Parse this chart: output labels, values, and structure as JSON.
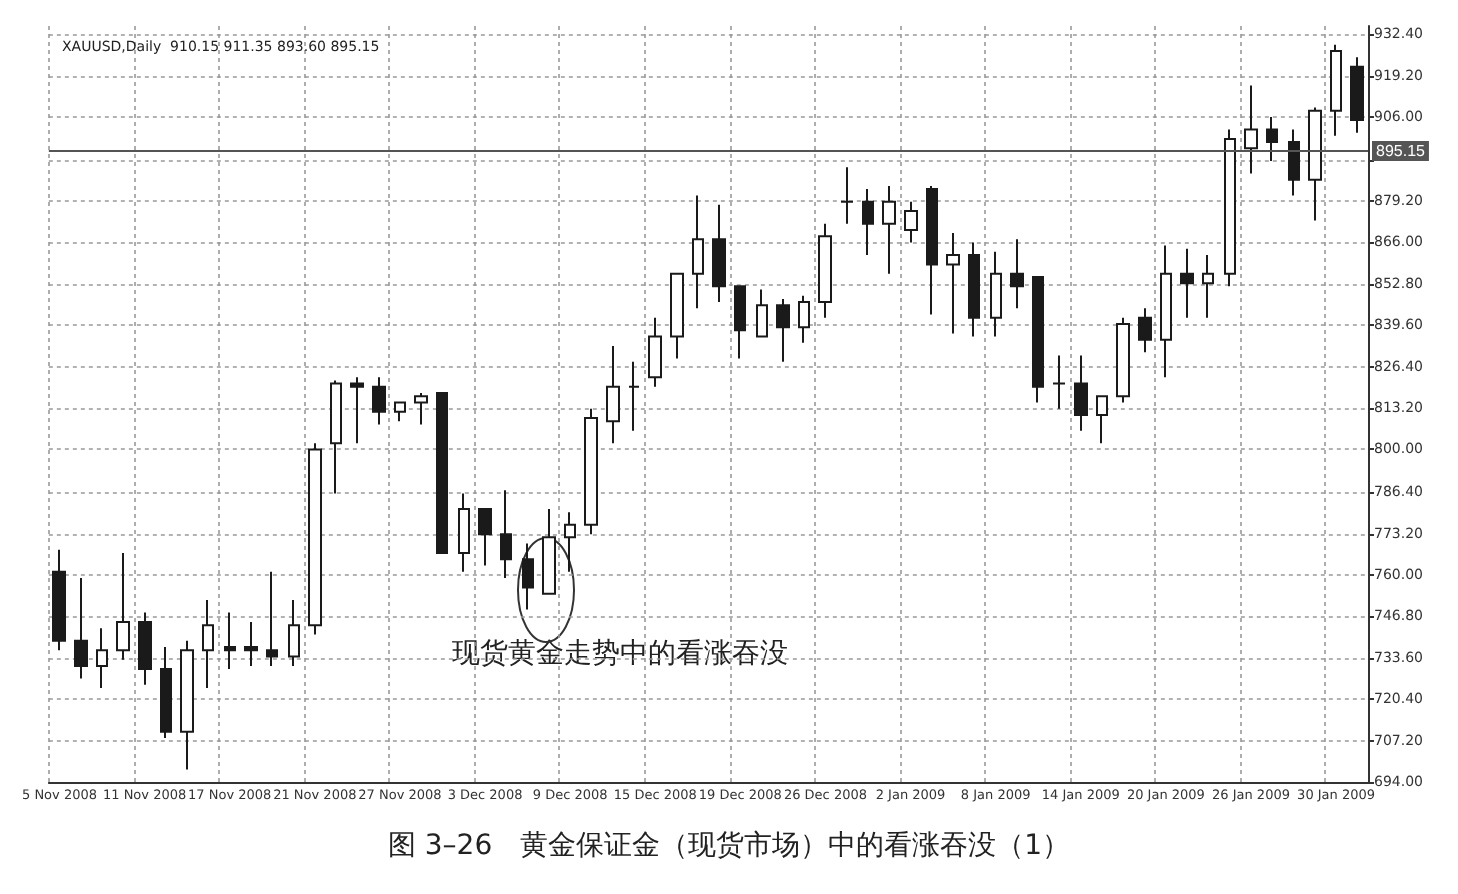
{
  "chart_data": {
    "type": "candlestick",
    "title": "图 3–26　黄金保证金（现货市场）中的看涨吞没（1）",
    "subtitle": "XAUUSD,Daily  910.15 911.35 893.60 895.15",
    "annotations": [
      "现货黄金走势中的看涨吞没"
    ],
    "categories": [
      "5 Nov 2008",
      null,
      null,
      null,
      "11 Nov 2008",
      null,
      null,
      null,
      "17 Nov 2008",
      null,
      null,
      null,
      "21 Nov 2008",
      null,
      null,
      null,
      "27 Nov 2008",
      null,
      null,
      null,
      "3 Dec 2008",
      null,
      null,
      null,
      "9 Dec 2008",
      null,
      null,
      null,
      "15 Dec 2008",
      null,
      null,
      null,
      "19 Dec 2008",
      null,
      null,
      null,
      "26 Dec 2008",
      null,
      null,
      null,
      "2 Jan 2009",
      null,
      null,
      null,
      "8 Jan 2009",
      null,
      null,
      null,
      "14 Jan 2009",
      null,
      null,
      null,
      "20 Jan 2009",
      null,
      null,
      null,
      "26 Jan 2009",
      null,
      null,
      null,
      "30 Jan 2009",
      null
    ],
    "series": [
      {
        "color": "#1a1a1a",
        "ohlc": [
          [
            761,
            768,
            736,
            739
          ],
          [
            739,
            759,
            727,
            731
          ],
          [
            731,
            743,
            724,
            736
          ],
          [
            736,
            767,
            733,
            745
          ],
          [
            745,
            748,
            725,
            730
          ],
          [
            730,
            737,
            708,
            710
          ],
          [
            710,
            739,
            698,
            736
          ],
          [
            736,
            752,
            724,
            744
          ],
          [
            737,
            748,
            730,
            736
          ],
          [
            737,
            745,
            731,
            736
          ],
          [
            736,
            761,
            731,
            734
          ],
          [
            734,
            752,
            731,
            744
          ],
          [
            744,
            802,
            741,
            800
          ],
          [
            802,
            822,
            786,
            821
          ],
          [
            821,
            823,
            802,
            820
          ],
          [
            820,
            823,
            808,
            812
          ],
          [
            812,
            815,
            809,
            815
          ],
          [
            815,
            818,
            808,
            817
          ],
          [
            818,
            818,
            767,
            767
          ],
          [
            767,
            786,
            761,
            781
          ],
          [
            781,
            781,
            763,
            773
          ],
          [
            773,
            787,
            759,
            765
          ],
          [
            765,
            770,
            749,
            756
          ],
          [
            754,
            781,
            754,
            772
          ],
          [
            772,
            780,
            761,
            776
          ],
          [
            776,
            813,
            773,
            810
          ],
          [
            809,
            833,
            802,
            820
          ],
          [
            820,
            828,
            806,
            820
          ],
          [
            823,
            842,
            820,
            836
          ],
          [
            836,
            856,
            829,
            856
          ],
          [
            856,
            881,
            845,
            867
          ],
          [
            867,
            878,
            847,
            852
          ],
          [
            852,
            852,
            829,
            838
          ],
          [
            836,
            851,
            836,
            846
          ],
          [
            846,
            848,
            828,
            839
          ],
          [
            839,
            849,
            834,
            847
          ],
          [
            847,
            872,
            842,
            868
          ],
          [
            879,
            890,
            872,
            879
          ],
          [
            879,
            883,
            862,
            872
          ],
          [
            872,
            884,
            856,
            879
          ],
          [
            870,
            879,
            866,
            876
          ],
          [
            883,
            884,
            843,
            859
          ],
          [
            859,
            869,
            837,
            862
          ],
          [
            862,
            866,
            836,
            842
          ],
          [
            842,
            863,
            836,
            856
          ],
          [
            856,
            867,
            845,
            852
          ],
          [
            855,
            855,
            815,
            820
          ],
          [
            821,
            830,
            813,
            821
          ],
          [
            821,
            830,
            806,
            811
          ],
          [
            811,
            817,
            802,
            817
          ],
          [
            817,
            842,
            815,
            840
          ],
          [
            842,
            845,
            831,
            835
          ],
          [
            835,
            865,
            823,
            856
          ],
          [
            856,
            864,
            842,
            853
          ],
          [
            853,
            862,
            842,
            856
          ],
          [
            856,
            902,
            852,
            899
          ],
          [
            896,
            916,
            888,
            902
          ],
          [
            902,
            906,
            892,
            898
          ],
          [
            898,
            902,
            881,
            886
          ],
          [
            886,
            909,
            873,
            908
          ],
          [
            908,
            929,
            900,
            927
          ],
          [
            922,
            925,
            901,
            905
          ]
        ]
      }
    ],
    "ylim": [
      694,
      935
    ],
    "yticks": [
      {
        "value": 694,
        "label": "694.00"
      },
      {
        "value": 707.2,
        "label": "707.20"
      },
      {
        "value": 720.4,
        "label": "720.40"
      },
      {
        "value": 733.6,
        "label": "733.60"
      },
      {
        "value": 746.8,
        "label": "746.80"
      },
      {
        "value": 760,
        "label": "760.00"
      },
      {
        "value": 773.2,
        "label": "773.20"
      },
      {
        "value": 786.4,
        "label": "786.40"
      },
      {
        "value": 800,
        "label": "800.00"
      },
      {
        "value": 813.2,
        "label": "813.20"
      },
      {
        "value": 826.4,
        "label": "826.40"
      },
      {
        "value": 839.6,
        "label": "839.60"
      },
      {
        "value": 852.8,
        "label": "852.80"
      },
      {
        "value": 866,
        "label": "866.00"
      },
      {
        "value": 879.2,
        "label": "879.20"
      },
      {
        "value": 892.4,
        "label": null
      },
      {
        "value": 906,
        "label": "906.00"
      },
      {
        "value": 919.2,
        "label": "919.20"
      },
      {
        "value": 932.4,
        "label": "932.40"
      }
    ],
    "ref_lines": [
      {
        "axis": "y",
        "value": 895.15,
        "label": "895.15",
        "color": "#555555"
      }
    ],
    "grid": true
  }
}
